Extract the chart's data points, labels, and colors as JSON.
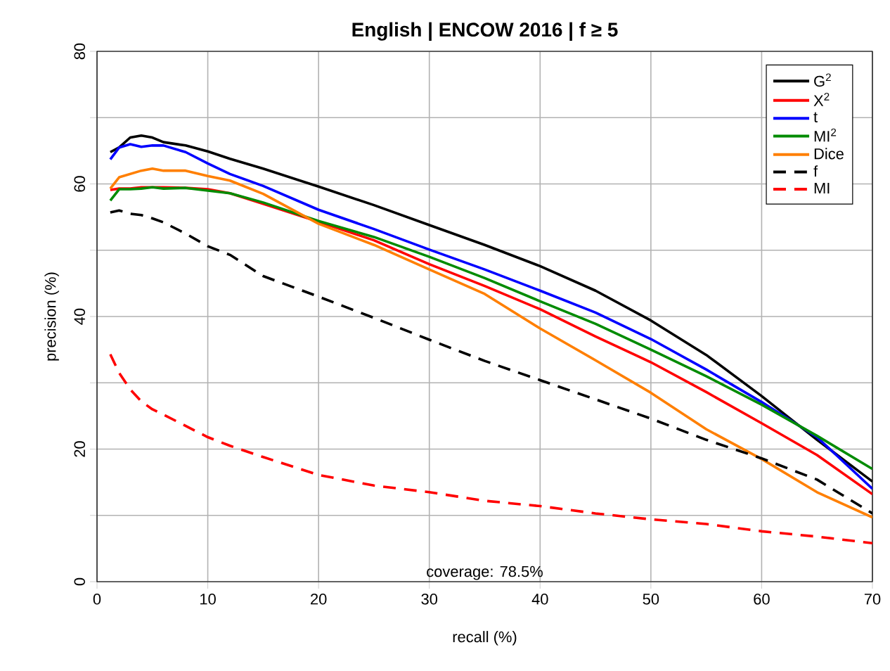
{
  "chart_data": {
    "type": "line",
    "title": "English | ENCOW 2016 | f ≥ 5",
    "xlabel": "recall (%)",
    "ylabel": "precision (%)",
    "annotations": [
      "coverage: 78.5%"
    ],
    "x": [
      1.2,
      2,
      3,
      4,
      5,
      6,
      8,
      10,
      12,
      15,
      20,
      25,
      30,
      35,
      40,
      45,
      50,
      55,
      60,
      65,
      70
    ],
    "series": [
      {
        "name": "G$^{2}$",
        "color": "#000000",
        "line_style": "solid",
        "values": [
          64.8,
          65.5,
          67,
          67.3,
          67,
          66.3,
          65.8,
          64.9,
          63.8,
          62.3,
          59.6,
          56.8,
          53.8,
          50.8,
          47.6,
          43.9,
          39.4,
          34.2,
          28.0,
          21.4,
          15.1
        ]
      },
      {
        "name": "X$^{2}$",
        "color": "#ff0000",
        "line_style": "solid",
        "values": [
          59.1,
          59.3,
          59.3,
          59.5,
          59.5,
          59.5,
          59.4,
          59.2,
          58.6,
          57.0,
          54.3,
          51.5,
          47.9,
          44.6,
          41.1,
          37.0,
          33.1,
          28.6,
          23.9,
          19.1,
          13.2
        ]
      },
      {
        "name": "t",
        "color": "#0000ff",
        "line_style": "solid",
        "values": [
          63.7,
          65.5,
          66,
          65.6,
          65.8,
          65.8,
          64.8,
          63.1,
          61.5,
          59.7,
          56.1,
          53.2,
          50.1,
          47.1,
          43.9,
          40.6,
          36.6,
          32.0,
          27.1,
          21.8,
          14.0
        ]
      },
      {
        "name": "MI$^{2}$",
        "color": "#008b00",
        "line_style": "solid",
        "values": [
          57.5,
          59.2,
          59.2,
          59.3,
          59.5,
          59.3,
          59.4,
          59.0,
          58.6,
          57.2,
          54.4,
          52.0,
          49.0,
          45.8,
          42.3,
          38.9,
          35.0,
          31.0,
          26.7,
          22.0,
          17.0
        ]
      },
      {
        "name": "Dice",
        "color": "#ff7f00",
        "line_style": "solid",
        "values": [
          59.3,
          61,
          61.5,
          62,
          62.3,
          62,
          62,
          61.2,
          60.5,
          58.5,
          54.0,
          50.8,
          47.1,
          43.4,
          38.2,
          33.4,
          28.5,
          23.0,
          18.5,
          13.5,
          9.7
        ]
      },
      {
        "name": "f",
        "color": "#000000",
        "line_style": "dashed",
        "values": [
          55.7,
          56.0,
          55.5,
          55.3,
          54.8,
          54.2,
          52.5,
          50.6,
          49.3,
          46.1,
          43.0,
          39.8,
          36.5,
          33.3,
          30.4,
          27.5,
          24.6,
          21.4,
          18.6,
          15.4,
          10.3
        ]
      },
      {
        "name": "MI",
        "color": "#ff0000",
        "line_style": "dashed",
        "values": [
          34.3,
          31.5,
          29,
          27.2,
          26,
          25.2,
          23.5,
          21.8,
          20.5,
          18.8,
          16.1,
          14.5,
          13.5,
          12.2,
          11.4,
          10.3,
          9.4,
          8.7,
          7.6,
          6.8,
          5.8
        ]
      }
    ],
    "xlim": [
      0,
      70
    ],
    "ylim": [
      0,
      80
    ],
    "xticks": [
      0,
      10,
      20,
      30,
      40,
      50,
      60,
      70
    ],
    "yticks": [
      0,
      {
        "value": 10,
        "label": null
      },
      20,
      {
        "value": 30,
        "label": null
      },
      40,
      {
        "value": 50,
        "label": null
      },
      60,
      {
        "value": 70,
        "label": null
      },
      80
    ],
    "grid": true,
    "legend": "top right",
    "marker": "none"
  }
}
